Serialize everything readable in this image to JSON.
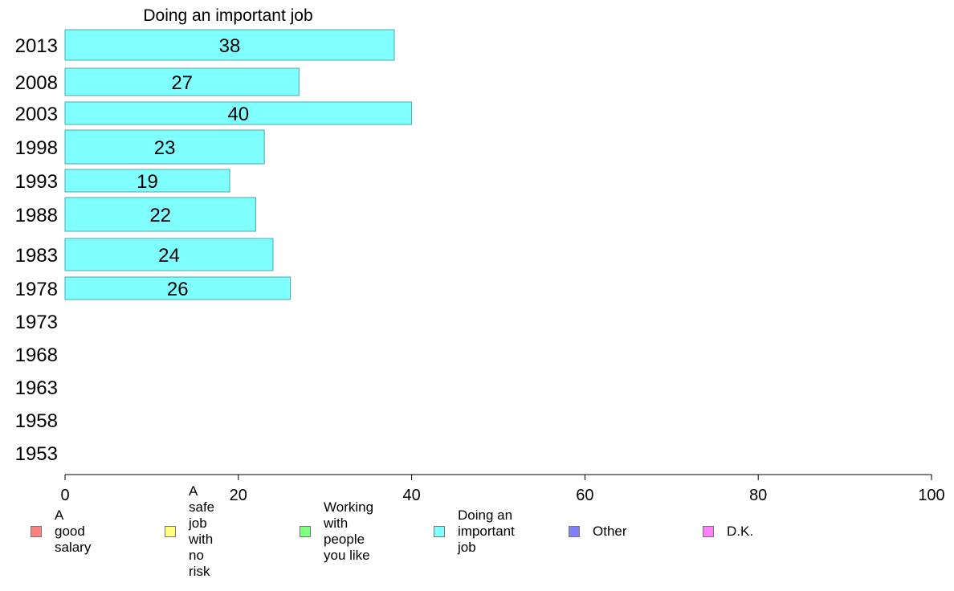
{
  "chart_data": {
    "type": "bar",
    "orientation": "horizontal",
    "title": "Doing an important job",
    "categories": [
      "2013",
      "2008",
      "2003",
      "1998",
      "1993",
      "1988",
      "1983",
      "1978",
      "1973",
      "1968",
      "1963",
      "1958",
      "1953"
    ],
    "series": [
      {
        "name": "Doing an important job",
        "color": "#80FFFF",
        "values": [
          38,
          27,
          40,
          23,
          19,
          22,
          24,
          26,
          null,
          null,
          null,
          null,
          null
        ]
      }
    ],
    "data_labels": [
      "38",
      "27",
      "40",
      "23",
      "19",
      "22",
      "24",
      "26",
      "",
      "",
      "",
      "",
      ""
    ],
    "xlim": [
      0,
      100
    ],
    "xticks": [
      "0",
      "20",
      "40",
      "60",
      "80",
      "100"
    ],
    "xlabel": "",
    "ylabel": "",
    "grid": false,
    "legend_position": "bottom"
  },
  "legend": [
    {
      "label": "A good salary",
      "color": "#FF8080"
    },
    {
      "label": "A safe job\nwith no risk",
      "color": "#FFFF80"
    },
    {
      "label": "Working with\npeople you like",
      "color": "#80FF80"
    },
    {
      "label": "Doing an\nimportant job",
      "color": "#80FFFF"
    },
    {
      "label": "Other",
      "color": "#8080FF"
    },
    {
      "label": "D.K.",
      "color": "#FF80FF"
    }
  ]
}
